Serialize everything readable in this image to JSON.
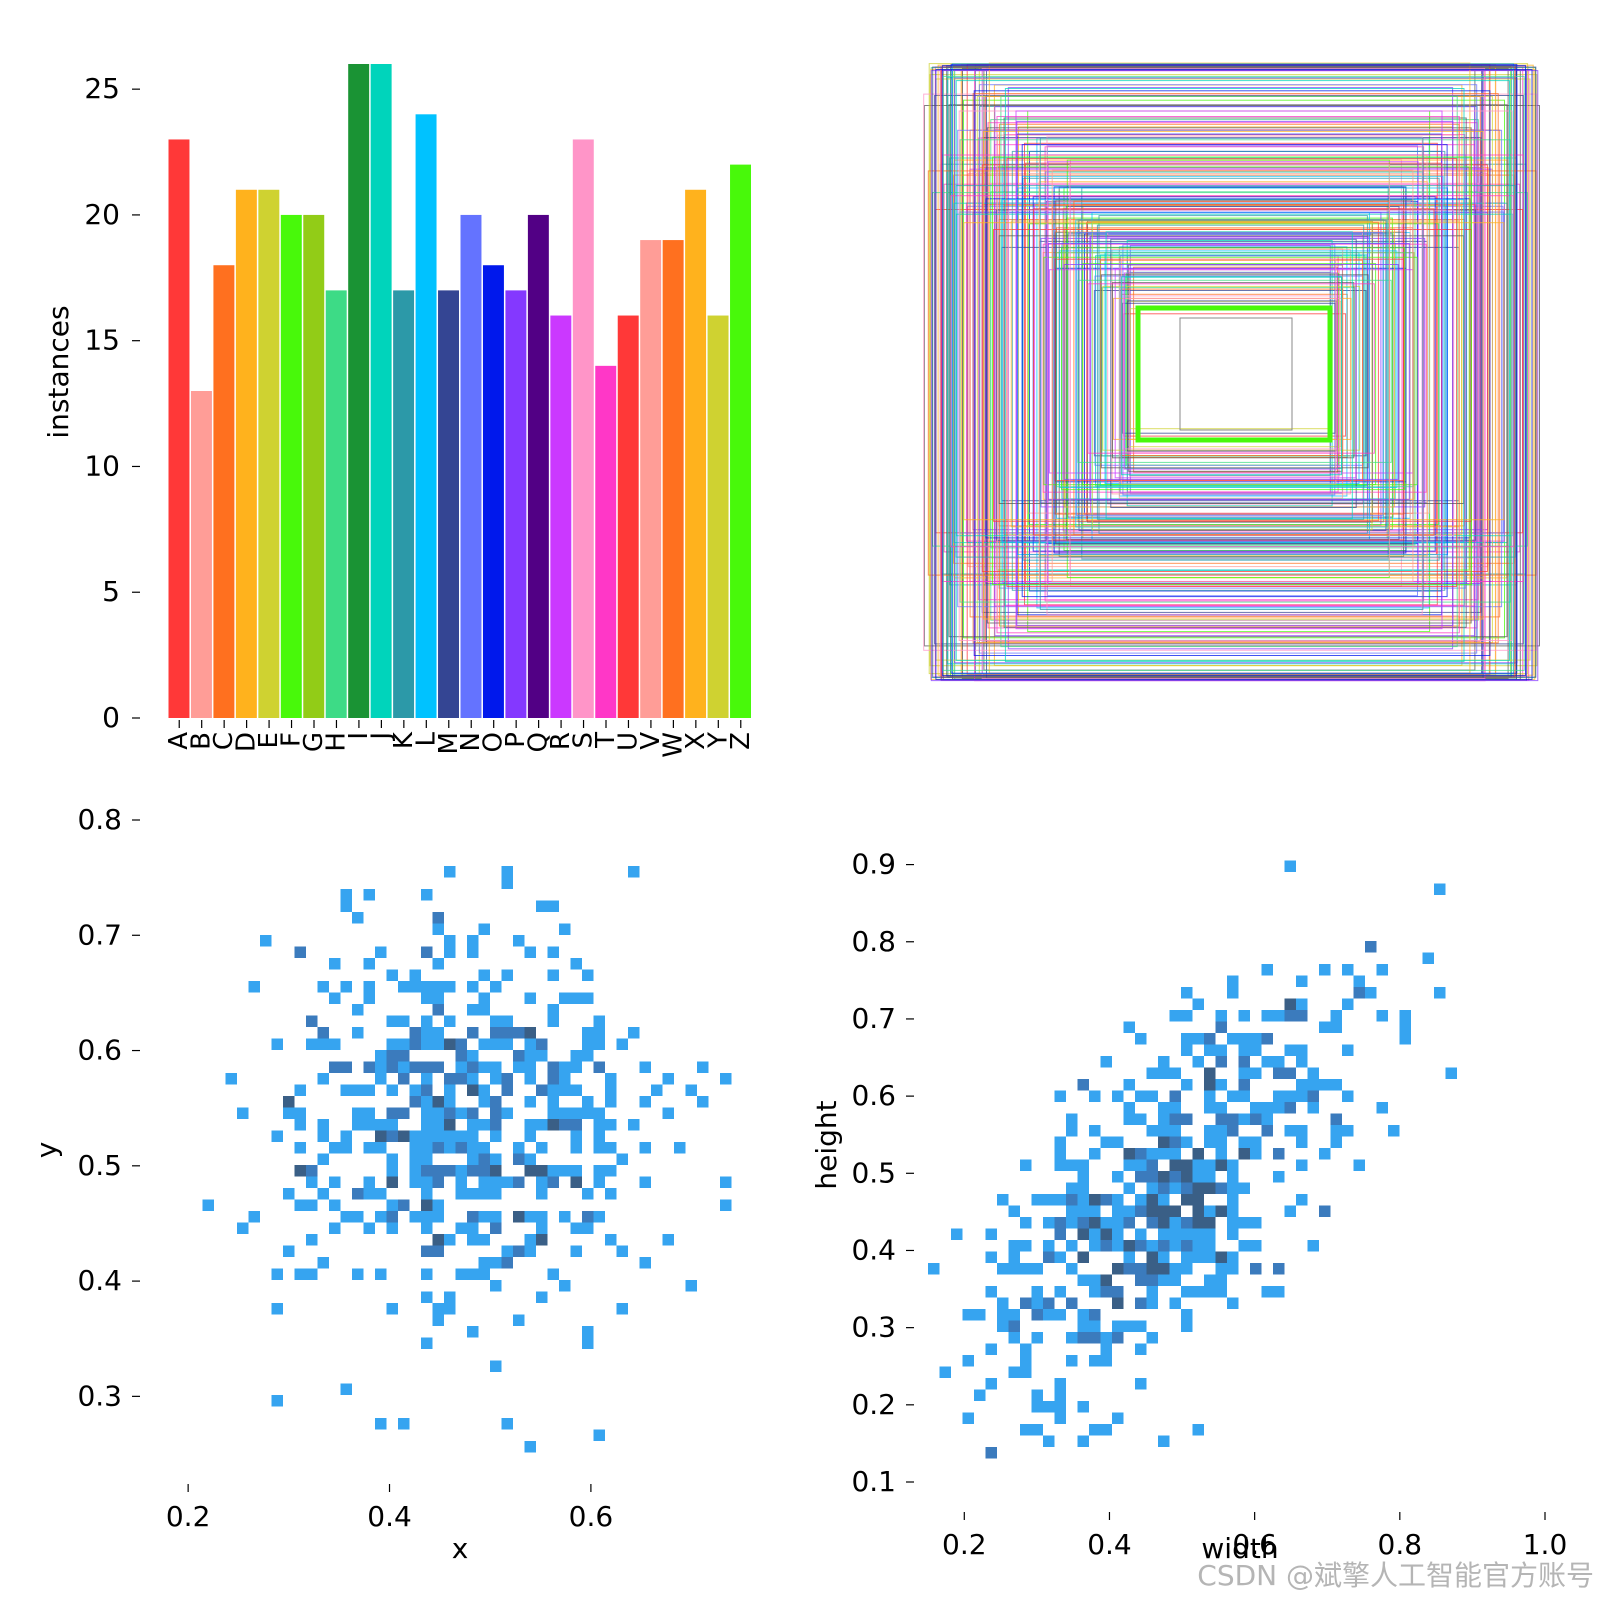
{
  "watermark": "CSDN @斌擎人工智能官方账号",
  "chart_data": [
    {
      "type": "bar",
      "categories": [
        "A",
        "B",
        "C",
        "D",
        "E",
        "F",
        "G",
        "H",
        "I",
        "J",
        "K",
        "L",
        "M",
        "N",
        "O",
        "P",
        "Q",
        "R",
        "S",
        "T",
        "U",
        "V",
        "W",
        "X",
        "Y",
        "Z"
      ],
      "values": [
        23,
        13,
        18,
        21,
        21,
        20,
        20,
        17,
        26,
        26,
        17,
        24,
        17,
        20,
        18,
        17,
        20,
        16,
        23,
        14,
        16,
        19,
        19,
        21,
        16,
        22
      ],
      "colors": [
        "#ff3838",
        "#ff9d97",
        "#ff701f",
        "#ffb21d",
        "#cfd231",
        "#48f90a",
        "#92cc17",
        "#3ddb86",
        "#1a9334",
        "#00d4bb",
        "#2c99a8",
        "#00c2ff",
        "#344593",
        "#6473ff",
        "#0018ec",
        "#8438ff",
        "#520085",
        "#cb38ff",
        "#ff95c8",
        "#ff37c7",
        "#ff3838",
        "#ff9d97",
        "#ff701f",
        "#ffb21d",
        "#cfd231",
        "#48f90a"
      ],
      "xlabel": "",
      "ylabel": "instances",
      "yticks": [
        0,
        5,
        10,
        15,
        20,
        25
      ],
      "ylim": [
        0,
        26
      ]
    },
    {
      "type": "other",
      "description_kind": "bounding-box-overlay",
      "box_colors": [
        "#ff3838",
        "#ff9d97",
        "#ff701f",
        "#ffb21d",
        "#cfd231",
        "#48f90a",
        "#3ddb86",
        "#00d4bb",
        "#2c99a8",
        "#00c2ff",
        "#344593",
        "#6473ff",
        "#0018ec",
        "#8438ff",
        "#cb38ff",
        "#ff95c8",
        "#ff37c7",
        "#555555"
      ]
    },
    {
      "type": "heatmap",
      "xlabel": "x",
      "ylabel": "y",
      "xticks": [
        "0.2",
        "0.4",
        "0.6"
      ],
      "yticks": [
        "0.3",
        "0.4",
        "0.5",
        "0.6",
        "0.7",
        "0.8"
      ],
      "xlim": [
        0.18,
        0.76
      ],
      "ylim": [
        0.25,
        0.8
      ],
      "grid": false,
      "colors": {
        "low": "#36a4f0",
        "high": "#3a5f86"
      }
    },
    {
      "type": "heatmap",
      "xlabel": "width",
      "ylabel": "height",
      "xticks": [
        "0.2",
        "0.4",
        "0.6",
        "0.8",
        "1.0"
      ],
      "yticks": [
        "0.1",
        "0.2",
        "0.3",
        "0.4",
        "0.5",
        "0.6",
        "0.7",
        "0.8",
        "0.9"
      ],
      "xlim": [
        0.15,
        1.0
      ],
      "ylim": [
        0.1,
        0.95
      ],
      "grid": false,
      "colors": {
        "low": "#36a4f0",
        "high": "#3a5f86"
      }
    }
  ]
}
